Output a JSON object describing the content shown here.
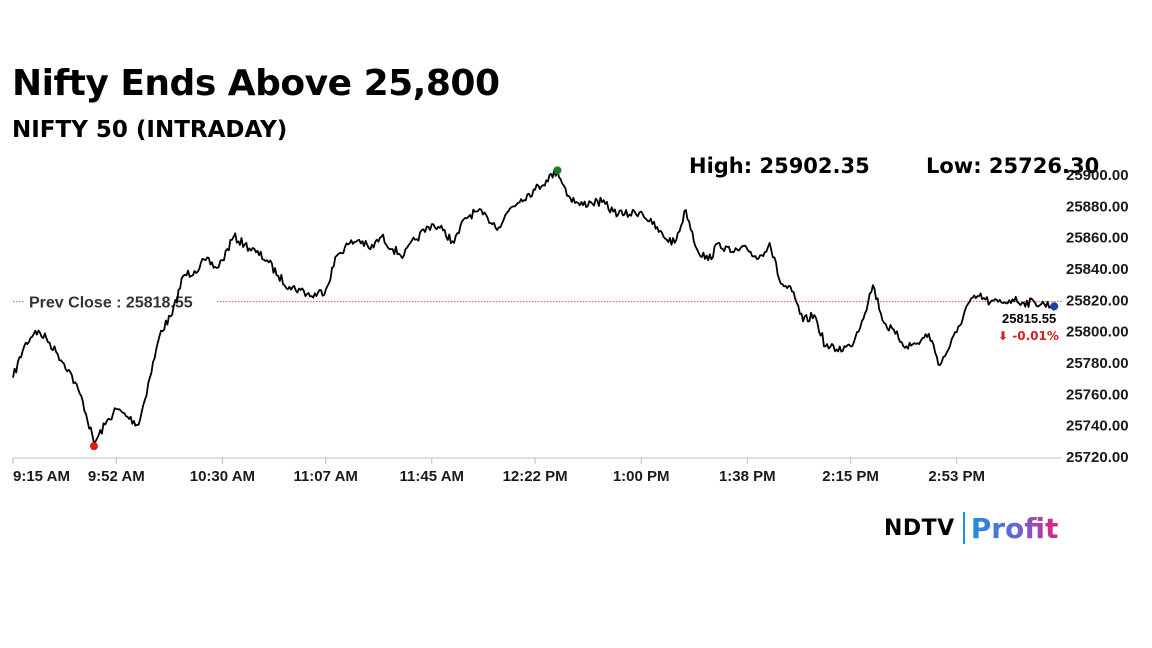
{
  "headline": "Nifty Ends Above 25,800",
  "subheadline": "NIFTY 50 (INTRADAY)",
  "stats": {
    "high_label": "High:",
    "high_value": "25902.35",
    "low_label": "Low:",
    "low_value": "25726.30"
  },
  "chart_data": {
    "type": "line",
    "title": "NIFTY 50 (INTRADAY)",
    "xlabel": "",
    "ylabel": "",
    "x_ticks": [
      "9:15 AM",
      "9:52 AM",
      "10:30 AM",
      "11:07 AM",
      "11:45 AM",
      "12:22 PM",
      "1:00 PM",
      "1:38 PM",
      "2:15 PM",
      "2:53 PM"
    ],
    "y_ticks": [
      "25720.00",
      "25740.00",
      "25760.00",
      "25780.00",
      "25800.00",
      "25820.00",
      "25840.00",
      "25860.00",
      "25880.00",
      "25900.00"
    ],
    "ylim": [
      25720,
      25900
    ],
    "xlim": [
      "9:15 AM",
      "3:30 PM"
    ],
    "grid": false,
    "series": [
      {
        "x": [
          "9:15 AM",
          "9:19 AM",
          "9:23 AM",
          "9:27 AM",
          "9:31 AM",
          "9:35 AM",
          "9:40 AM",
          "9:44 AM",
          "9:48 AM",
          "9:52 AM",
          "9:56 AM",
          "10:00 AM",
          "10:04 AM",
          "10:08 AM",
          "10:12 AM",
          "10:16 AM",
          "10:20 AM",
          "10:24 AM",
          "10:28 AM",
          "10:30 AM",
          "10:34 AM",
          "10:38 AM",
          "10:42 AM",
          "10:46 AM",
          "10:50 AM",
          "10:54 AM",
          "10:58 AM",
          "11:02 AM",
          "11:07 AM",
          "11:11 AM",
          "11:15 AM",
          "11:19 AM",
          "11:23 AM",
          "11:27 AM",
          "11:31 AM",
          "11:35 AM",
          "11:39 AM",
          "11:45 AM",
          "11:49 AM",
          "11:53 AM",
          "11:57 AM",
          "12:01 PM",
          "12:05 PM",
          "12:09 PM",
          "12:13 PM",
          "12:17 PM",
          "12:22 PM",
          "12:26 PM",
          "12:30 PM",
          "12:34 PM",
          "12:38 PM",
          "12:42 PM",
          "12:46 PM",
          "12:50 PM",
          "12:54 PM",
          "1:00 PM",
          "1:04 PM",
          "1:08 PM",
          "1:12 PM",
          "1:16 PM",
          "1:20 PM",
          "1:24 PM",
          "1:28 PM",
          "1:32 PM",
          "1:38 PM",
          "1:42 PM",
          "1:46 PM",
          "1:50 PM",
          "1:54 PM",
          "1:58 PM",
          "2:02 PM",
          "2:06 PM",
          "2:10 PM",
          "2:15 PM",
          "2:19 PM",
          "2:23 PM",
          "2:27 PM",
          "2:31 PM",
          "2:35 PM",
          "2:39 PM",
          "2:43 PM",
          "2:47 PM",
          "2:53 PM",
          "2:57 PM",
          "3:01 PM",
          "3:05 PM",
          "3:09 PM",
          "3:13 PM",
          "3:17 PM",
          "3:21 PM",
          "3:29 PM"
        ],
        "y": [
          25770,
          25790,
          25800,
          25795,
          25785,
          25775,
          25755,
          25728,
          25740,
          25750,
          25745,
          25740,
          25770,
          25800,
          25810,
          25835,
          25838,
          25845,
          25840,
          25845,
          25860,
          25855,
          25850,
          25845,
          25835,
          25828,
          25826,
          25822,
          25826,
          25848,
          25855,
          25858,
          25852,
          25860,
          25852,
          25848,
          25858,
          25868,
          25864,
          25856,
          25872,
          25876,
          25872,
          25866,
          25878,
          25884,
          25890,
          25896,
          25902,
          25886,
          25880,
          25882,
          25882,
          25876,
          25874,
          25876,
          25868,
          25860,
          25856,
          25877,
          25852,
          25845,
          25856,
          25850,
          25852,
          25846,
          25856,
          25830,
          25825,
          25806,
          25810,
          25790,
          25788,
          25790,
          25806,
          25829,
          25805,
          25798,
          25790,
          25792,
          25798,
          25778,
          25799,
          25817,
          25822,
          25818,
          25818,
          25820,
          25818,
          25818,
          25815.55
        ]
      }
    ],
    "prev_close": {
      "label": "Prev Close : 25818.55",
      "value": 25818.55
    },
    "high_point": {
      "x": "12:30 PM",
      "y": 25902.35
    },
    "low_point": {
      "x": "9:44 AM",
      "y": 25726.3
    },
    "last": {
      "value": "25815.55",
      "change": "-0.01%",
      "arrow": "⬇"
    }
  },
  "colors": {
    "line": "#000000",
    "prev_close_line": "#d9534f",
    "high_marker": "#1a7f1a",
    "low_marker": "#e01818",
    "last_marker": "#1a3fb0",
    "change_negative": "#d61e1e",
    "axis": "#888888"
  },
  "brand": {
    "ndtv": "NDTV",
    "profit": "Profit"
  }
}
